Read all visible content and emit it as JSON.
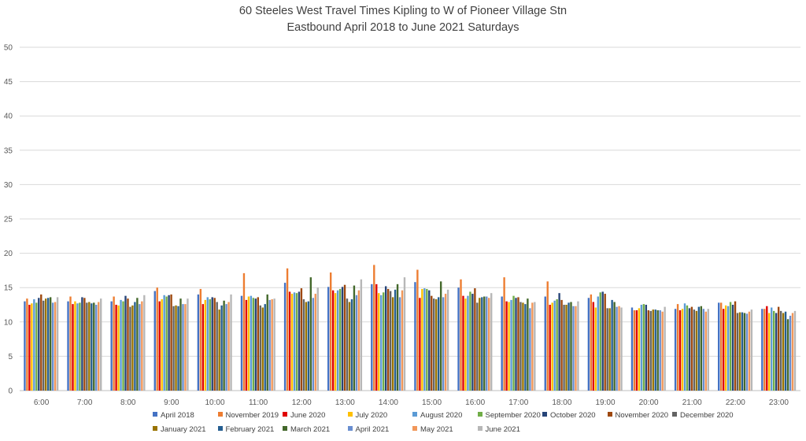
{
  "chart_data": {
    "type": "bar",
    "title": "60 Steeles West Travel Times Kipling to W of Pioneer Village Stn",
    "subtitle": "Eastbound April 2018 to June 2021 Saturdays",
    "xlabel": "",
    "ylabel": "",
    "ylim": [
      0,
      50
    ],
    "yticks": [
      0,
      5,
      10,
      15,
      20,
      25,
      30,
      35,
      40,
      45,
      50
    ],
    "grid": true,
    "legend_position": "bottom",
    "categories": [
      "6:00",
      "7:00",
      "8:00",
      "9:00",
      "10:00",
      "11:00",
      "12:00",
      "13:00",
      "14:00",
      "15:00",
      "16:00",
      "17:00",
      "18:00",
      "19:00",
      "20:00",
      "21:00",
      "22:00",
      "23:00"
    ],
    "series": [
      {
        "name": "April 2018",
        "color": "#4472c4",
        "values": [
          13.0,
          13.0,
          13.0,
          14.5,
          14.0,
          13.8,
          15.7,
          15.1,
          15.5,
          15.8,
          15.0,
          13.7,
          13.7,
          13.5,
          12.1,
          11.9,
          12.8,
          11.9
        ]
      },
      {
        "name": "November 2019",
        "color": "#ed7d31",
        "values": [
          13.4,
          13.7,
          13.7,
          15.0,
          14.8,
          17.1,
          17.8,
          17.2,
          18.3,
          17.6,
          16.2,
          16.5,
          15.9,
          14.0,
          11.7,
          12.6,
          12.8,
          11.9
        ]
      },
      {
        "name": "June 2020",
        "color": "#e00000",
        "values": [
          12.5,
          12.6,
          12.5,
          13.0,
          12.6,
          13.2,
          14.4,
          14.6,
          15.5,
          13.5,
          13.8,
          13.0,
          12.5,
          12.9,
          11.7,
          11.7,
          11.9,
          12.3
        ]
      },
      {
        "name": "July 2020",
        "color": "#ffc000",
        "values": [
          12.7,
          13.0,
          12.4,
          13.3,
          13.2,
          13.7,
          14.1,
          14.2,
          14.2,
          14.8,
          13.4,
          12.9,
          12.8,
          12.1,
          12.0,
          11.9,
          12.4,
          11.3
        ]
      },
      {
        "name": "August 2020",
        "color": "#5b9bd5",
        "values": [
          13.3,
          12.7,
          13.2,
          13.9,
          13.6,
          13.8,
          14.3,
          14.6,
          13.9,
          14.9,
          13.8,
          13.2,
          13.1,
          13.7,
          12.5,
          12.7,
          12.3,
          12.1
        ]
      },
      {
        "name": "September 2020",
        "color": "#70ad47",
        "values": [
          12.8,
          12.8,
          13.0,
          13.7,
          13.3,
          13.5,
          14.2,
          14.8,
          14.3,
          14.8,
          14.4,
          13.8,
          13.3,
          14.3,
          12.6,
          12.4,
          12.9,
          11.6
        ]
      },
      {
        "name": "October 2020",
        "color": "#264478",
        "values": [
          13.5,
          13.6,
          13.8,
          13.9,
          13.6,
          13.4,
          14.4,
          15.1,
          15.2,
          14.6,
          14.1,
          13.5,
          14.2,
          14.4,
          12.5,
          12.0,
          12.5,
          11.3
        ]
      },
      {
        "name": "November 2020",
        "color": "#9e480e",
        "values": [
          14.0,
          13.5,
          13.4,
          14.0,
          13.5,
          13.6,
          14.9,
          15.4,
          14.8,
          13.8,
          14.9,
          13.6,
          13.2,
          14.1,
          11.7,
          12.2,
          13.0,
          12.2
        ]
      },
      {
        "name": "December 2020",
        "color": "#636363",
        "values": [
          13.1,
          12.8,
          12.2,
          12.3,
          12.9,
          12.4,
          13.3,
          13.4,
          14.5,
          13.4,
          12.8,
          12.9,
          12.5,
          12.0,
          11.6,
          11.8,
          11.3,
          11.6
        ]
      },
      {
        "name": "January 2021",
        "color": "#997300",
        "values": [
          13.4,
          12.9,
          12.4,
          12.4,
          11.8,
          12.1,
          12.9,
          12.9,
          13.6,
          13.3,
          13.5,
          12.8,
          12.5,
          12.0,
          11.8,
          11.6,
          11.4,
          11.3
        ]
      },
      {
        "name": "February 2021",
        "color": "#255e91",
        "values": [
          13.5,
          12.7,
          12.9,
          12.3,
          12.4,
          12.6,
          13.0,
          13.3,
          14.7,
          13.6,
          13.6,
          12.6,
          12.8,
          13.2,
          11.8,
          12.2,
          11.4,
          11.5
        ]
      },
      {
        "name": "March 2021",
        "color": "#43682b",
        "values": [
          13.6,
          12.8,
          13.5,
          13.4,
          13.1,
          14.0,
          16.5,
          15.3,
          15.5,
          15.9,
          13.7,
          13.4,
          12.9,
          12.9,
          11.7,
          12.3,
          11.3,
          10.4
        ]
      },
      {
        "name": "April 2021",
        "color": "#698ed0",
        "values": [
          12.8,
          12.5,
          12.6,
          12.6,
          12.6,
          13.2,
          13.5,
          13.9,
          13.6,
          13.6,
          13.7,
          12.0,
          12.3,
          12.2,
          11.7,
          11.9,
          11.2,
          10.9
        ]
      },
      {
        "name": "May 2021",
        "color": "#f1975a",
        "values": [
          12.9,
          12.9,
          13.0,
          12.6,
          12.9,
          13.3,
          14.1,
          14.6,
          14.6,
          14.1,
          13.5,
          12.8,
          12.3,
          12.3,
          11.5,
          11.5,
          11.5,
          11.3
        ]
      },
      {
        "name": "June 2021",
        "color": "#b7b7b7",
        "values": [
          13.6,
          13.4,
          13.9,
          13.4,
          14.0,
          13.4,
          15.0,
          16.2,
          16.5,
          14.7,
          14.2,
          12.9,
          13.0,
          12.1,
          12.2,
          11.9,
          11.8,
          11.6
        ]
      }
    ]
  }
}
